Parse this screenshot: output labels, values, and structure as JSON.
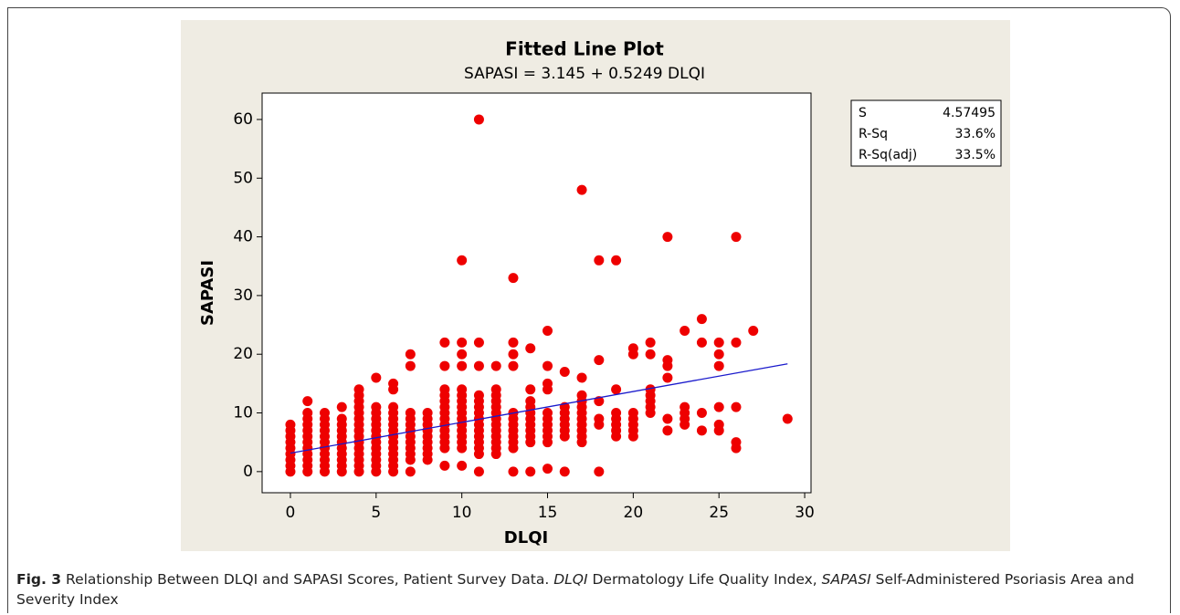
{
  "chart_data": {
    "type": "scatter",
    "title": "Fitted Line Plot",
    "subtitle": "SAPASI =  3.145 + 0.5249 DLQI",
    "x_label": "DLQI",
    "y_label": "SAPASI",
    "color": "#ee0000",
    "points": [
      {
        "x": 0,
        "values": [
          0,
          1,
          2,
          3,
          4,
          5,
          6,
          7,
          8
        ]
      },
      {
        "x": 1,
        "values": [
          0,
          1,
          2,
          3,
          4,
          5,
          6,
          7,
          8,
          9,
          10,
          12
        ]
      },
      {
        "x": 2,
        "values": [
          0,
          1,
          2,
          3,
          4,
          5,
          6,
          7,
          8,
          9,
          10
        ]
      },
      {
        "x": 3,
        "values": [
          0,
          1,
          2,
          3,
          4,
          5,
          6,
          7,
          8,
          9,
          11
        ]
      },
      {
        "x": 4,
        "values": [
          0,
          1,
          2,
          3,
          4,
          5,
          6,
          7,
          8,
          9,
          10,
          11,
          12,
          13,
          14
        ]
      },
      {
        "x": 5,
        "values": [
          0,
          1,
          2,
          3,
          4,
          5,
          6,
          7,
          8,
          9,
          10,
          11,
          16
        ]
      },
      {
        "x": 6,
        "values": [
          0,
          1,
          2,
          3,
          4,
          5,
          6,
          7,
          8,
          9,
          10,
          11,
          14,
          15
        ]
      },
      {
        "x": 7,
        "values": [
          0,
          2,
          3,
          4,
          5,
          6,
          7,
          8,
          9,
          10,
          18,
          20
        ]
      },
      {
        "x": 8,
        "values": [
          2,
          3,
          4,
          5,
          6,
          7,
          8,
          9,
          10
        ]
      },
      {
        "x": 9,
        "values": [
          1,
          4,
          5,
          6,
          7,
          8,
          9,
          10,
          11,
          12,
          13,
          14,
          18,
          22
        ]
      },
      {
        "x": 10,
        "values": [
          1,
          4,
          5,
          6,
          7,
          8,
          9,
          10,
          11,
          12,
          13,
          14,
          18,
          20,
          22,
          36
        ]
      },
      {
        "x": 11,
        "values": [
          0,
          3,
          4,
          5,
          6,
          7,
          8,
          9,
          10,
          11,
          12,
          13,
          18,
          22,
          60
        ]
      },
      {
        "x": 12,
        "values": [
          3,
          4,
          5,
          6,
          7,
          8,
          9,
          10,
          11,
          12,
          13,
          14,
          18
        ]
      },
      {
        "x": 13,
        "values": [
          0,
          4,
          5,
          6,
          7,
          8,
          9,
          10,
          18,
          20,
          22,
          33
        ]
      },
      {
        "x": 14,
        "values": [
          0,
          5,
          6,
          7,
          8,
          9,
          10,
          11,
          12,
          14,
          21
        ]
      },
      {
        "x": 15,
        "values": [
          0.5,
          5,
          6,
          7,
          8,
          9,
          10,
          14,
          15,
          18,
          24
        ]
      },
      {
        "x": 16,
        "values": [
          0,
          6,
          7,
          8,
          9,
          10,
          11,
          17
        ]
      },
      {
        "x": 17,
        "values": [
          5,
          6,
          7,
          8,
          9,
          10,
          11,
          12,
          13,
          16,
          48
        ]
      },
      {
        "x": 18,
        "values": [
          0,
          8,
          9,
          12,
          19,
          36
        ]
      },
      {
        "x": 19,
        "values": [
          6,
          7,
          8,
          9,
          10,
          14,
          36
        ]
      },
      {
        "x": 20,
        "values": [
          6,
          7,
          8,
          9,
          10,
          20,
          21
        ]
      },
      {
        "x": 21,
        "values": [
          10,
          11,
          12,
          13,
          14,
          20,
          22
        ]
      },
      {
        "x": 22,
        "values": [
          7,
          9,
          16,
          18,
          19,
          40
        ]
      },
      {
        "x": 23,
        "values": [
          8,
          9,
          10,
          11,
          24
        ]
      },
      {
        "x": 24,
        "values": [
          7,
          10,
          22,
          26
        ]
      },
      {
        "x": 25,
        "values": [
          7,
          8,
          11,
          18,
          20,
          22
        ]
      },
      {
        "x": 26,
        "values": [
          4,
          5,
          11,
          22,
          40
        ]
      },
      {
        "x": 27,
        "values": [
          24
        ]
      },
      {
        "x": 29,
        "values": [
          9
        ]
      }
    ],
    "fit": {
      "color": "#1a1acc",
      "x": [
        0,
        29
      ],
      "values": [
        3.145,
        18.367
      ]
    },
    "xlim": [
      -1.65,
      30.37
    ],
    "ylim": [
      -3.6,
      64.5
    ],
    "xticks": [
      0,
      5,
      10,
      15,
      20,
      25,
      30
    ],
    "yticks": [
      0,
      10,
      20,
      30,
      40,
      50,
      60
    ],
    "stats": [
      {
        "label": "S",
        "value": "4.57495"
      },
      {
        "label": "R-Sq",
        "value": "33.6%"
      },
      {
        "label": "R-Sq(adj)",
        "value": "33.5%"
      }
    ]
  },
  "caption": {
    "label": "Fig. 3",
    "text": "Relationship Between DLQI and SAPASI Scores, Patient Survey Data.",
    "abbreviations": [
      {
        "term": "DLQI",
        "definition": "Dermatology Life Quality Index,"
      },
      {
        "term": "SAPASI",
        "definition": "Self-Administered Psoriasis Area and Severity Index"
      }
    ]
  }
}
